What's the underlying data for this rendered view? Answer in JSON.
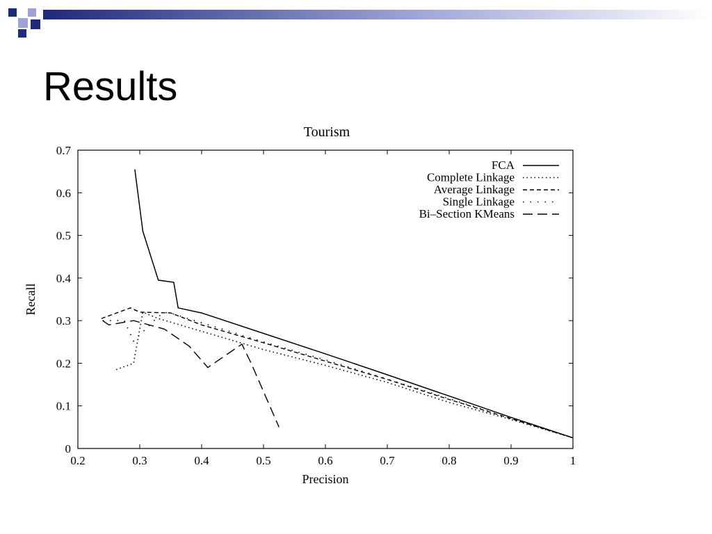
{
  "slide": {
    "title": "Results",
    "colors": {
      "navy": "#1e2a7a",
      "lavender": "#9da3d6",
      "white": "#ffffff"
    }
  },
  "chart_data": {
    "type": "line",
    "title": "Tourism",
    "xlabel": "Precision",
    "ylabel": "Recall",
    "xlim": [
      0.2,
      1
    ],
    "ylim": [
      0,
      0.7
    ],
    "xticks": [
      "0.2",
      "0.3",
      "0.4",
      "0.5",
      "0.6",
      "0.7",
      "0.8",
      "0.9",
      "1"
    ],
    "yticks": [
      "0",
      "0.1",
      "0.2",
      "0.3",
      "0.4",
      "0.5",
      "0.6",
      "0.7"
    ],
    "xtick_values": [
      0.2,
      0.3,
      0.4,
      0.5,
      0.6,
      0.7,
      0.8,
      0.9,
      1.0
    ],
    "ytick_values": [
      0,
      0.1,
      0.2,
      0.3,
      0.4,
      0.5,
      0.6,
      0.7
    ],
    "legend_position": "top-right",
    "grid": false,
    "series": [
      {
        "name": "FCA",
        "style": "solid",
        "points": [
          [
            0.292,
            0.655
          ],
          [
            0.305,
            0.51
          ],
          [
            0.33,
            0.395
          ],
          [
            0.355,
            0.39
          ],
          [
            0.362,
            0.33
          ],
          [
            0.4,
            0.318
          ],
          [
            0.5,
            0.27
          ],
          [
            0.6,
            0.222
          ],
          [
            0.7,
            0.173
          ],
          [
            0.8,
            0.123
          ],
          [
            0.9,
            0.073
          ],
          [
            1.0,
            0.025
          ]
        ]
      },
      {
        "name": "Complete Linkage",
        "style": "dotted",
        "points": [
          [
            0.262,
            0.185
          ],
          [
            0.29,
            0.2
          ],
          [
            0.305,
            0.32
          ],
          [
            0.33,
            0.305
          ],
          [
            0.4,
            0.275
          ],
          [
            0.5,
            0.232
          ],
          [
            0.6,
            0.195
          ],
          [
            0.7,
            0.155
          ],
          [
            0.8,
            0.108
          ],
          [
            0.9,
            0.068
          ],
          [
            1.0,
            0.025
          ]
        ]
      },
      {
        "name": "Average Linkage",
        "style": "dashed",
        "points": [
          [
            0.238,
            0.305
          ],
          [
            0.285,
            0.33
          ],
          [
            0.3,
            0.32
          ],
          [
            0.35,
            0.318
          ],
          [
            0.4,
            0.29
          ],
          [
            0.5,
            0.248
          ],
          [
            0.6,
            0.205
          ],
          [
            0.7,
            0.162
          ],
          [
            0.8,
            0.115
          ],
          [
            0.9,
            0.07
          ],
          [
            1.0,
            0.025
          ]
        ]
      },
      {
        "name": "Single Linkage",
        "style": "sparse-dotted",
        "points": [
          [
            0.24,
            0.3
          ],
          [
            0.275,
            0.3
          ],
          [
            0.29,
            0.252
          ],
          [
            0.33,
            0.31
          ],
          [
            0.345,
            0.32
          ],
          [
            0.4,
            0.295
          ],
          [
            0.5,
            0.25
          ],
          [
            0.6,
            0.208
          ],
          [
            0.7,
            0.163
          ],
          [
            0.8,
            0.117
          ],
          [
            0.9,
            0.07
          ],
          [
            1.0,
            0.025
          ]
        ]
      },
      {
        "name": "Bi–Section KMeans",
        "style": "long-dashed",
        "points": [
          [
            0.24,
            0.3
          ],
          [
            0.25,
            0.29
          ],
          [
            0.27,
            0.295
          ],
          [
            0.29,
            0.3
          ],
          [
            0.34,
            0.28
          ],
          [
            0.38,
            0.24
          ],
          [
            0.41,
            0.19
          ],
          [
            0.465,
            0.245
          ],
          [
            0.48,
            0.2
          ],
          [
            0.525,
            0.05
          ]
        ]
      }
    ]
  }
}
